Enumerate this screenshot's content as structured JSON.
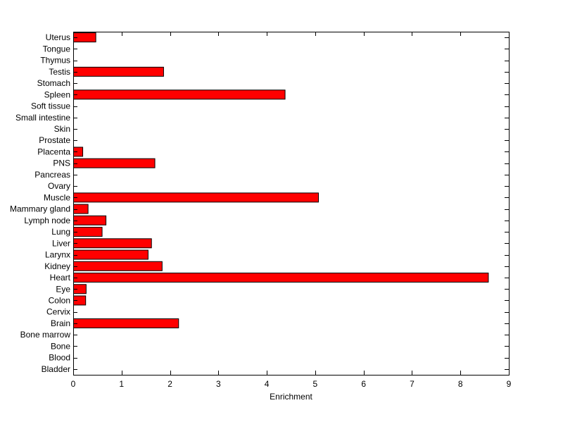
{
  "chart_data": {
    "type": "bar",
    "orientation": "horizontal",
    "categories": [
      "Bladder",
      "Blood",
      "Bone",
      "Bone marrow",
      "Brain",
      "Cervix",
      "Colon",
      "Eye",
      "Heart",
      "Kidney",
      "Larynx",
      "Liver",
      "Lung",
      "Lymph node",
      "Mammary gland",
      "Muscle",
      "Ovary",
      "Pancreas",
      "PNS",
      "Placenta",
      "Prostate",
      "Skin",
      "Small intestine",
      "Soft tissue",
      "Spleen",
      "Stomach",
      "Testis",
      "Thymus",
      "Tongue",
      "Uterus"
    ],
    "values": [
      0,
      0,
      0,
      0,
      2.17,
      0,
      0.25,
      0.26,
      8.57,
      1.83,
      1.54,
      1.61,
      0.59,
      0.67,
      0.3,
      5.06,
      0,
      0,
      1.68,
      0.19,
      0,
      0,
      0,
      0,
      4.37,
      0,
      1.86,
      0,
      0,
      0.46
    ],
    "title": "",
    "xlabel": "Enrichment",
    "ylabel": "",
    "xlim": [
      0,
      9
    ],
    "xticks": [
      0,
      1,
      2,
      3,
      4,
      5,
      6,
      7,
      8,
      9
    ],
    "bar_color": "#ff0000",
    "grid": false
  }
}
